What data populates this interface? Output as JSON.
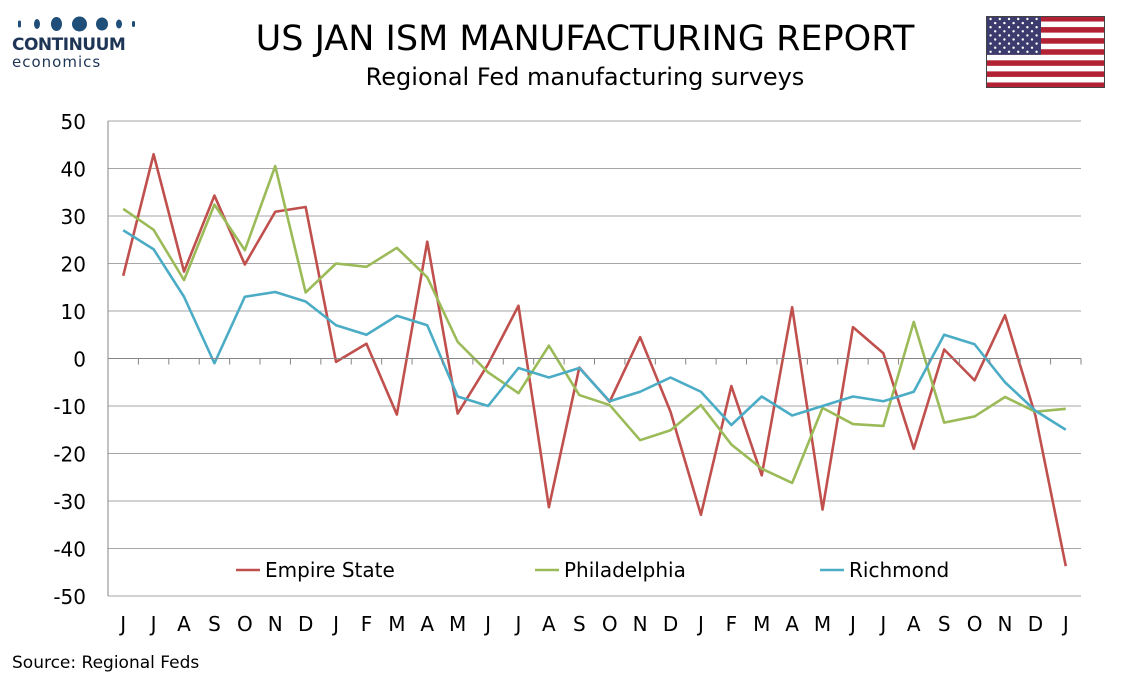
{
  "logo": {
    "name": "CONTINUUM",
    "sub": "economics"
  },
  "header": {
    "title": "US JAN ISM MANUFACTURING REPORT",
    "subtitle": "Regional Fed manufacturing surveys"
  },
  "source": "Source: Regional Feds",
  "colors": {
    "empire": "#c0504d",
    "philly": "#9bbb59",
    "richmond": "#4bacc6",
    "grid": "#a6a6a6"
  },
  "chart_data": {
    "type": "line",
    "title": "US JAN ISM MANUFACTURING REPORT",
    "subtitle": "Regional Fed manufacturing surveys",
    "x": [
      "J",
      "J",
      "A",
      "S",
      "O",
      "N",
      "D",
      "J",
      "F",
      "M",
      "A",
      "M",
      "J",
      "J",
      "A",
      "S",
      "O",
      "N",
      "D",
      "J",
      "F",
      "M",
      "A",
      "M",
      "J",
      "J",
      "A",
      "S",
      "O",
      "N",
      "D",
      "J"
    ],
    "ylim": [
      -50,
      50
    ],
    "yticks": [
      50,
      40,
      30,
      20,
      10,
      0,
      -10,
      -20,
      -30,
      -40,
      -50
    ],
    "grid": true,
    "legend_position": "bottom",
    "series": [
      {
        "name": "Empire State",
        "color": "#c0504d",
        "values": [
          17.4,
          43.0,
          18.3,
          34.3,
          19.8,
          30.9,
          31.9,
          -0.7,
          3.1,
          -11.8,
          24.6,
          -11.6,
          -1.2,
          11.1,
          -31.3,
          -1.9,
          -9.1,
          4.5,
          -11.2,
          -32.9,
          -5.8,
          -24.6,
          10.8,
          -31.8,
          6.6,
          1.1,
          -19.0,
          1.9,
          -4.6,
          9.1,
          -12.0,
          -43.7
        ]
      },
      {
        "name": "Philadelphia",
        "color": "#9bbb59",
        "values": [
          31.5,
          27.1,
          16.5,
          32.4,
          22.8,
          40.5,
          13.9,
          20.0,
          19.3,
          23.3,
          17.1,
          3.5,
          -2.9,
          -7.3,
          2.7,
          -7.7,
          -9.8,
          -17.2,
          -15.1,
          -9.8,
          -18.1,
          -23.2,
          -26.2,
          -10.4,
          -13.8,
          -14.2,
          7.7,
          -13.5,
          -12.2,
          -8.1,
          -11.2,
          -10.6
        ]
      },
      {
        "name": "Richmond",
        "color": "#4bacc6",
        "values": [
          27.0,
          23.0,
          13.0,
          -1.0,
          13.0,
          14.0,
          12.0,
          7.0,
          5.0,
          9.0,
          7.0,
          -8.0,
          -10.0,
          -2.0,
          -4.0,
          -2.0,
          -9.0,
          -7.0,
          -4.0,
          -7.0,
          -14.0,
          -8.0,
          -12.0,
          -10.0,
          -8.0,
          -9.0,
          -7.0,
          5.0,
          3.0,
          -5.0,
          -11.0,
          -15.0
        ]
      }
    ]
  }
}
